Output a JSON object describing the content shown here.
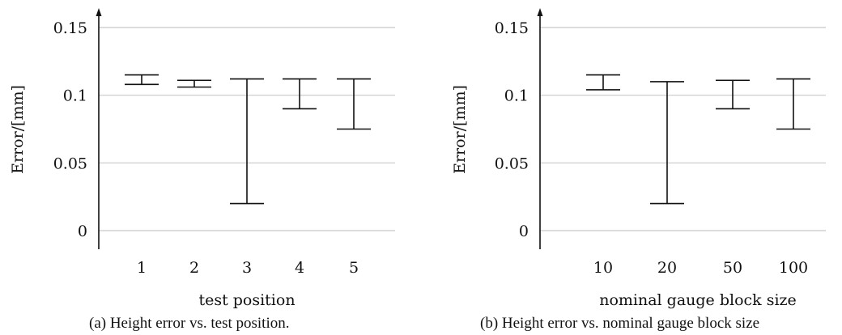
{
  "chart_data": [
    {
      "type": "range",
      "categories": [
        "1",
        "2",
        "3",
        "4",
        "5"
      ],
      "min": [
        0.108,
        0.106,
        0.02,
        0.09,
        0.075
      ],
      "max": [
        0.115,
        0.111,
        0.112,
        0.112,
        0.112
      ],
      "ylim": [
        -0.015,
        0.16
      ],
      "yticks": [
        "0",
        "0.05",
        "0.1",
        "0.15"
      ],
      "ytick_values": [
        0,
        0.05,
        0.1,
        0.15
      ],
      "ylabel": "Error/[mm]",
      "xlabel": "test position",
      "caption": "(a)  Height error vs. test position.",
      "grid": true
    },
    {
      "type": "range",
      "categories": [
        "10",
        "20",
        "50",
        "100"
      ],
      "min": [
        0.104,
        0.02,
        0.09,
        0.075
      ],
      "max": [
        0.115,
        0.11,
        0.111,
        0.112
      ],
      "ylim": [
        -0.015,
        0.16
      ],
      "yticks": [
        "0",
        "0.05",
        "0.1",
        "0.15"
      ],
      "ytick_values": [
        0,
        0.05,
        0.1,
        0.15
      ],
      "ylabel": "Error/[mm]",
      "xlabel": "nominal gauge block size",
      "caption": "(b)  Height error vs. nominal gauge block size",
      "grid": true
    }
  ]
}
